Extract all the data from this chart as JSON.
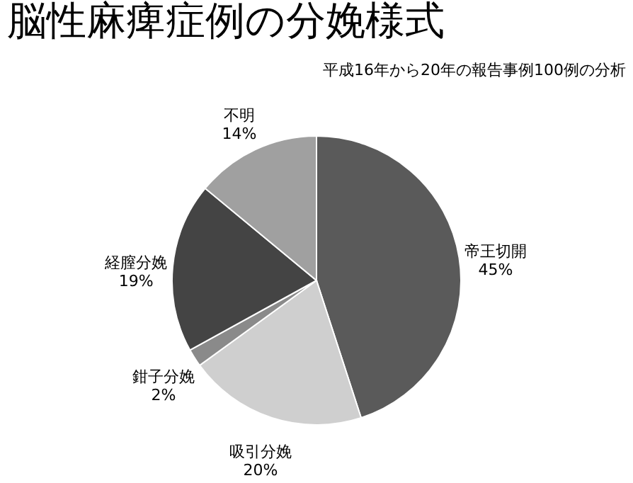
{
  "chart_data": {
    "type": "pie",
    "title": "脳性麻痺症例の分娩様式",
    "subtitle": "平成16年から20年の報告事例100例の分析",
    "categories": [
      "帝王切開",
      "吸引分娩",
      "鉗子分娩",
      "経膣分娩",
      "不明"
    ],
    "values": [
      45,
      20,
      2,
      19,
      14
    ],
    "value_labels": [
      "45%",
      "20%",
      "2%",
      "19%",
      "14%"
    ],
    "colors": [
      "#5a5a5a",
      "#cfcfcf",
      "#8a8a8a",
      "#444444",
      "#a0a0a0"
    ],
    "legend": false
  }
}
